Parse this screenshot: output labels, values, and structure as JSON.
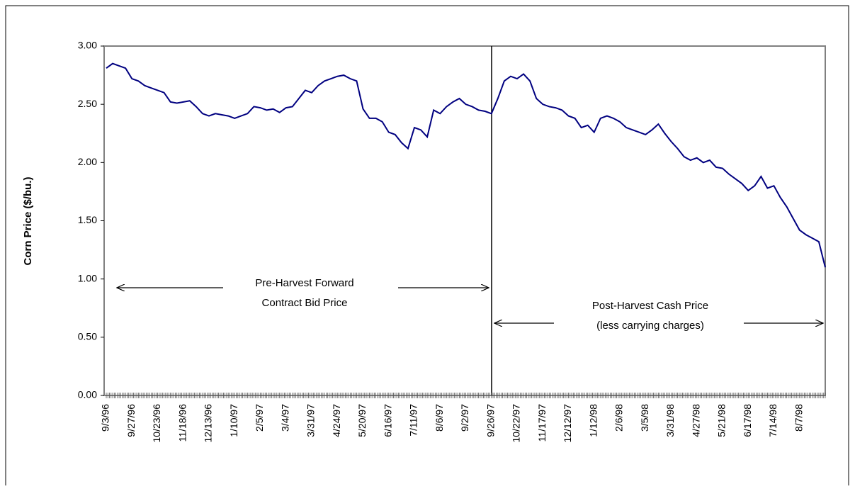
{
  "chart_data": {
    "type": "line",
    "y_label": "Corn Price ($/bu.)",
    "annotations": [
      "Pre-Harvest Forward",
      "Contract Bid Price",
      "Post-Harvest Cash Price",
      "(less carrying charges)"
    ],
    "color": "#000080",
    "ylim": [
      0,
      3
    ],
    "yticks": [
      {
        "value": 0,
        "label": "0.00"
      },
      {
        "value": 0.5,
        "label": "0.50"
      },
      {
        "value": 1,
        "label": "1.00"
      },
      {
        "value": 1.5,
        "label": "1.50"
      },
      {
        "value": 2,
        "label": "2.00"
      },
      {
        "value": 2.5,
        "label": "2.50"
      },
      {
        "value": 3,
        "label": "3.00"
      }
    ],
    "categories": [
      "9/3/96",
      null,
      null,
      null,
      "9/27/96",
      null,
      null,
      null,
      "10/23/96",
      null,
      null,
      null,
      "11/18/96",
      null,
      null,
      null,
      "12/13/96",
      null,
      null,
      null,
      "1/10/97",
      null,
      null,
      null,
      "2/5/97",
      null,
      null,
      null,
      "3/4/97",
      null,
      null,
      null,
      "3/31/97",
      null,
      null,
      null,
      "4/24/97",
      null,
      null,
      null,
      "5/20/97",
      null,
      null,
      null,
      "6/16/97",
      null,
      null,
      null,
      "7/11/97",
      null,
      null,
      null,
      "8/6/97",
      null,
      null,
      null,
      "9/2/97",
      null,
      null,
      null,
      "9/26/97",
      null,
      null,
      null,
      "10/22/97",
      null,
      null,
      null,
      "11/17/97",
      null,
      null,
      null,
      "12/12/97",
      null,
      null,
      null,
      "1/12/98",
      null,
      null,
      null,
      "2/6/98",
      null,
      null,
      null,
      "3/5/98",
      null,
      null,
      null,
      "3/31/98",
      null,
      null,
      null,
      "4/27/98",
      null,
      null,
      null,
      "5/21/98",
      null,
      null,
      null,
      "6/17/98",
      null,
      null,
      null,
      "7/14/98",
      null,
      null,
      null,
      "8/7/98",
      null,
      null,
      null,
      null
    ],
    "values": [
      2.81,
      2.85,
      2.83,
      2.81,
      2.72,
      2.7,
      2.66,
      2.64,
      2.62,
      2.6,
      2.52,
      2.51,
      2.52,
      2.53,
      2.48,
      2.42,
      2.4,
      2.42,
      2.41,
      2.4,
      2.38,
      2.4,
      2.42,
      2.48,
      2.47,
      2.45,
      2.46,
      2.43,
      2.47,
      2.48,
      2.55,
      2.62,
      2.6,
      2.66,
      2.7,
      2.72,
      2.74,
      2.75,
      2.72,
      2.7,
      2.46,
      2.38,
      2.38,
      2.35,
      2.26,
      2.24,
      2.17,
      2.12,
      2.3,
      2.28,
      2.22,
      2.45,
      2.42,
      2.48,
      2.52,
      2.55,
      2.5,
      2.48,
      2.45,
      2.44,
      2.42,
      2.55,
      2.7,
      2.74,
      2.72,
      2.76,
      2.7,
      2.55,
      2.5,
      2.48,
      2.47,
      2.45,
      2.4,
      2.38,
      2.3,
      2.32,
      2.26,
      2.38,
      2.4,
      2.38,
      2.35,
      2.3,
      2.28,
      2.26,
      2.24,
      2.28,
      2.33,
      2.25,
      2.18,
      2.12,
      2.05,
      2.02,
      2.04,
      2,
      2.02,
      1.96,
      1.95,
      1.9,
      1.86,
      1.82,
      1.76,
      1.8,
      1.88,
      1.78,
      1.8,
      1.7,
      1.62,
      1.52,
      1.42,
      1.38,
      1.35,
      1.32,
      1.1
    ]
  }
}
